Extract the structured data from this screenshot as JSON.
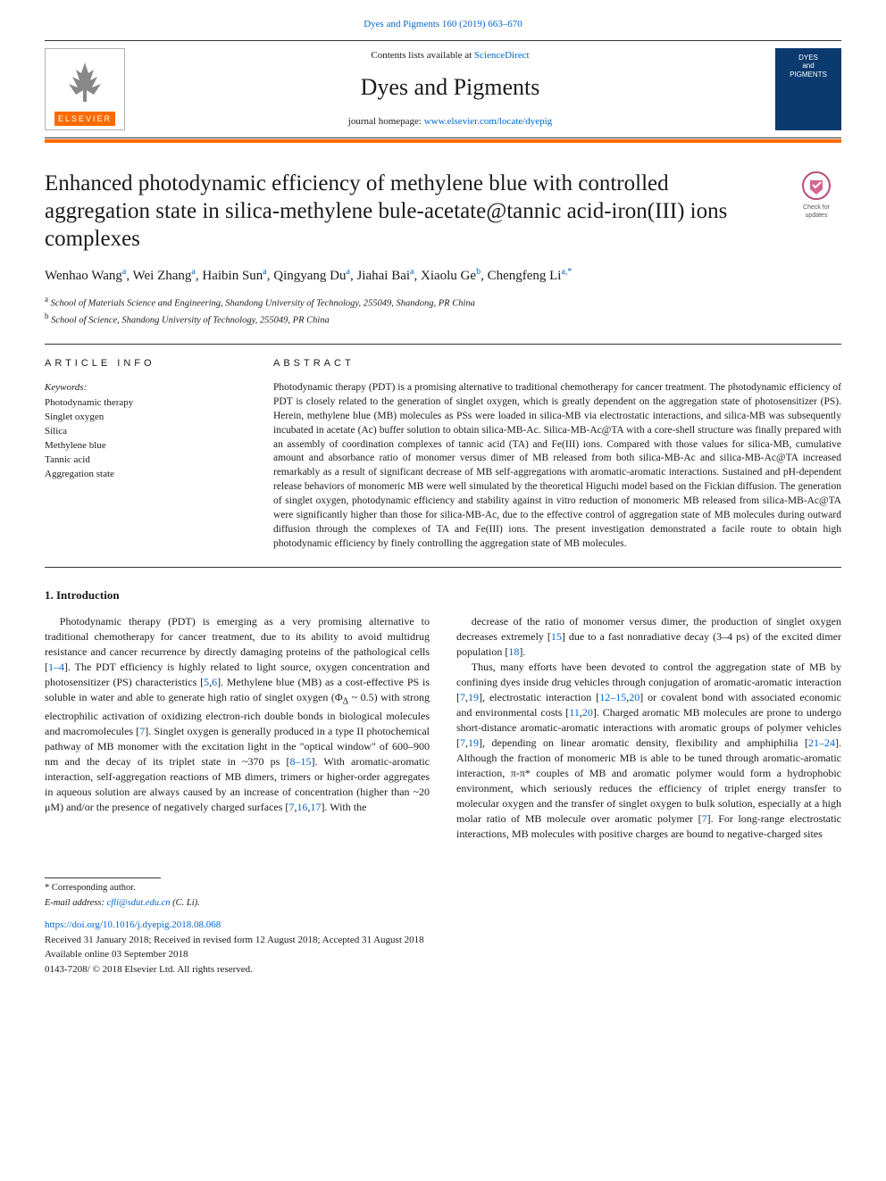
{
  "top_reference": "Dyes and Pigments 160 (2019) 663–670",
  "header": {
    "contents_prefix": "Contents lists available at ",
    "contents_link": "ScienceDirect",
    "journal_name": "Dyes and Pigments",
    "homepage_prefix": "journal homepage: ",
    "homepage_link": "www.elsevier.com/locate/dyepig",
    "elsevier_label": "ELSEVIER",
    "cover_line1": "DYES",
    "cover_line2": "and",
    "cover_line3": "PIGMENTS"
  },
  "article": {
    "title": "Enhanced photodynamic efficiency of methylene blue with controlled aggregation state in silica-methylene bule-acetate@tannic acid-iron(III) ions complexes",
    "updates_label": "Check for updates",
    "authors_html": "Wenhao Wang<sup class='sup'>a</sup>, Wei Zhang<sup class='sup'>a</sup>, Haibin Sun<sup class='sup'>a</sup>, Qingyang Du<sup class='sup'>a</sup>, Jiahai Bai<sup class='sup'>a</sup>, Xiaolu Ge<sup class='sup'>b</sup>, Chengfeng Li<sup class='sup'>a,</sup><sup class='sup'>*</sup>",
    "affiliations": [
      {
        "sup": "a",
        "text": "School of Materials Science and Engineering, Shandong University of Technology, 255049, Shandong, PR China"
      },
      {
        "sup": "b",
        "text": "School of Science, Shandong University of Technology, 255049, PR China"
      }
    ]
  },
  "info": {
    "head": "ARTICLE INFO",
    "keywords_label": "Keywords:",
    "keywords": [
      "Photodynamic therapy",
      "Singlet oxygen",
      "Silica",
      "Methylene blue",
      "Tannic acid",
      "Aggregation state"
    ]
  },
  "abstract": {
    "head": "ABSTRACT",
    "text": "Photodynamic therapy (PDT) is a promising alternative to traditional chemotherapy for cancer treatment. The photodynamic efficiency of PDT is closely related to the generation of singlet oxygen, which is greatly dependent on the aggregation state of photosensitizer (PS). Herein, methylene blue (MB) molecules as PSs were loaded in silica-MB via electrostatic interactions, and silica-MB was subsequently incubated in acetate (Ac) buffer solution to obtain silica-MB-Ac. Silica-MB-Ac@TA with a core-shell structure was finally prepared with an assembly of coordination complexes of tannic acid (TA) and Fe(III) ions. Compared with those values for silica-MB, cumulative amount and absorbance ratio of monomer versus dimer of MB released from both silica-MB-Ac and silica-MB-Ac@TA increased remarkably as a result of significant decrease of MB self-aggregations with aromatic-aromatic interactions. Sustained and pH-dependent release behaviors of monomeric MB were well simulated by the theoretical Higuchi model based on the Fickian diffusion. The generation of singlet oxygen, photodynamic efficiency and stability against in vitro reduction of monomeric MB released from silica-MB-Ac@TA were significantly higher than those for silica-MB-Ac, due to the effective control of aggregation state of MB molecules during outward diffusion through the complexes of TA and Fe(III) ions. The present investigation demonstrated a facile route to obtain high photodynamic efficiency by finely controlling the aggregation state of MB molecules."
  },
  "sections": {
    "intro_num": "1.",
    "intro_title": "Introduction",
    "col1_html": "Photodynamic therapy (PDT) is emerging as a very promising alternative to traditional chemotherapy for cancer treatment, due to its ability to avoid multidrug resistance and cancer recurrence by directly damaging proteins of the pathological cells [<span class='link'>1–4</span>]. The PDT efficiency is highly related to light source, oxygen concentration and photosensitizer (PS) characteristics [<span class='link'>5</span>,<span class='link'>6</span>]. Methylene blue (MB) as a cost-effective PS is soluble in water and able to generate high ratio of singlet oxygen (Φ<sub>Δ</sub> ~ 0.5) with strong electrophilic activation of oxidizing electron-rich double bonds in biological molecules and macromolecules [<span class='link'>7</span>]. Singlet oxygen is generally produced in a type II photochemical pathway of MB monomer with the excitation light in the \"optical window\" of 600–900 nm and the decay of its triplet state in ~370 ps [<span class='link'>8–15</span>]. With aromatic-aromatic interaction, self-aggregation reactions of MB dimers, trimers or higher-order aggregates in aqueous solution are always caused by an increase of concentration (higher than ~20 μM) and/or the presence of negatively charged surfaces [<span class='link'>7</span>,<span class='link'>16</span>,<span class='link'>17</span>]. With the",
    "col2_html": "decrease of the ratio of monomer versus dimer, the production of singlet oxygen decreases extremely [<span class='link'>15</span>] due to a fast nonradiative decay (3–4 ps) of the excited dimer population [<span class='link'>18</span>].</p><p>Thus, many efforts have been devoted to control the aggregation state of MB by confining dyes inside drug vehicles through conjugation of aromatic-aromatic interaction [<span class='link'>7</span>,<span class='link'>19</span>], electrostatic interaction [<span class='link'>12–15</span>,<span class='link'>20</span>] or covalent bond with associated economic and environmental costs [<span class='link'>11</span>,<span class='link'>20</span>]. Charged aromatic MB molecules are prone to undergo short-distance aromatic-aromatic interactions with aromatic groups of polymer vehicles [<span class='link'>7</span>,<span class='link'>19</span>], depending on linear aromatic density, flexibility and amphiphilia [<span class='link'>21–24</span>]. Although the fraction of monomeric MB is able to be tuned through aromatic-aromatic interaction, π-π* couples of MB and aromatic polymer would form a hydrophobic environment, which seriously reduces the efficiency of triplet energy transfer to molecular oxygen and the transfer of singlet oxygen to bulk solution, especially at a high molar ratio of MB molecule over aromatic polymer [<span class='link'>7</span>]. For long-range electrostatic interactions, MB molecules with positive charges are bound to negative-charged sites"
  },
  "footer": {
    "corr_label": "* Corresponding author.",
    "email_label": "E-mail address: ",
    "email": "cfli@sdut.edu.cn",
    "email_name": " (C. Li).",
    "doi": "https://doi.org/10.1016/j.dyepig.2018.08.068",
    "received": "Received 31 January 2018; Received in revised form 12 August 2018; Accepted 31 August 2018",
    "available": "Available online 03 September 2018",
    "copyright": "0143-7208/ © 2018 Elsevier Ltd. All rights reserved."
  },
  "colors": {
    "accent_orange": "#ff6a00",
    "link_blue": "#0066cc",
    "cover_blue": "#0b3a6e"
  }
}
